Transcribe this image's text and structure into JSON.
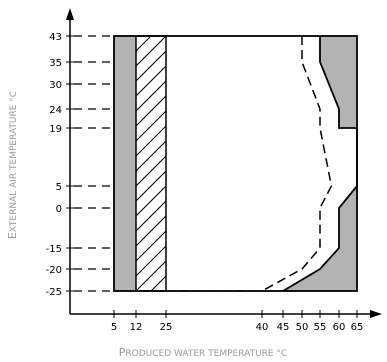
{
  "chart_data": {
    "type": "area",
    "xlabel": {
      "initial": "P",
      "rest": "RODUCED WATER TEMPERATURE °C"
    },
    "ylabel": {
      "initial": "E",
      "rest": "XTERNAL AIR TEMPERATURE °C"
    },
    "x_ticks": [
      5,
      12,
      25,
      40,
      45,
      50,
      55,
      60,
      65
    ],
    "y_ticks": [
      43,
      35,
      30,
      24,
      19,
      5,
      0,
      -15,
      -20,
      -25
    ],
    "regions": {
      "grey_band": {
        "x": [
          5,
          12
        ],
        "y": [
          -25,
          43
        ]
      },
      "hatched_band": {
        "x": [
          12,
          25
        ],
        "y": [
          -25,
          43
        ]
      }
    },
    "solid_boundary": [
      {
        "x": 55,
        "y": 43
      },
      {
        "x": 55,
        "y": 35
      },
      {
        "x": 60,
        "y": 24
      },
      {
        "x": 60,
        "y": 19
      },
      {
        "x": 65,
        "y": 19
      }
    ],
    "solid_boundary_lower": [
      {
        "x": 65,
        "y": 5
      },
      {
        "x": 60,
        "y": 0
      },
      {
        "x": 60,
        "y": -15
      },
      {
        "x": 55,
        "y": -20
      },
      {
        "x": 45,
        "y": -25
      }
    ],
    "dashed_boundary": [
      {
        "x": 50,
        "y": 43
      },
      {
        "x": 50,
        "y": 35
      },
      {
        "x": 55,
        "y": 24
      },
      {
        "x": 55,
        "y": 19
      },
      {
        "x": 58,
        "y": 5
      },
      {
        "x": 55,
        "y": 0
      },
      {
        "x": 55,
        "y": -15
      },
      {
        "x": 50,
        "y": -20
      },
      {
        "x": 40,
        "y": -25
      }
    ],
    "colors": {
      "grey": "#b3b3b3",
      "line": "#000000",
      "title": "#9a9a9a"
    }
  }
}
